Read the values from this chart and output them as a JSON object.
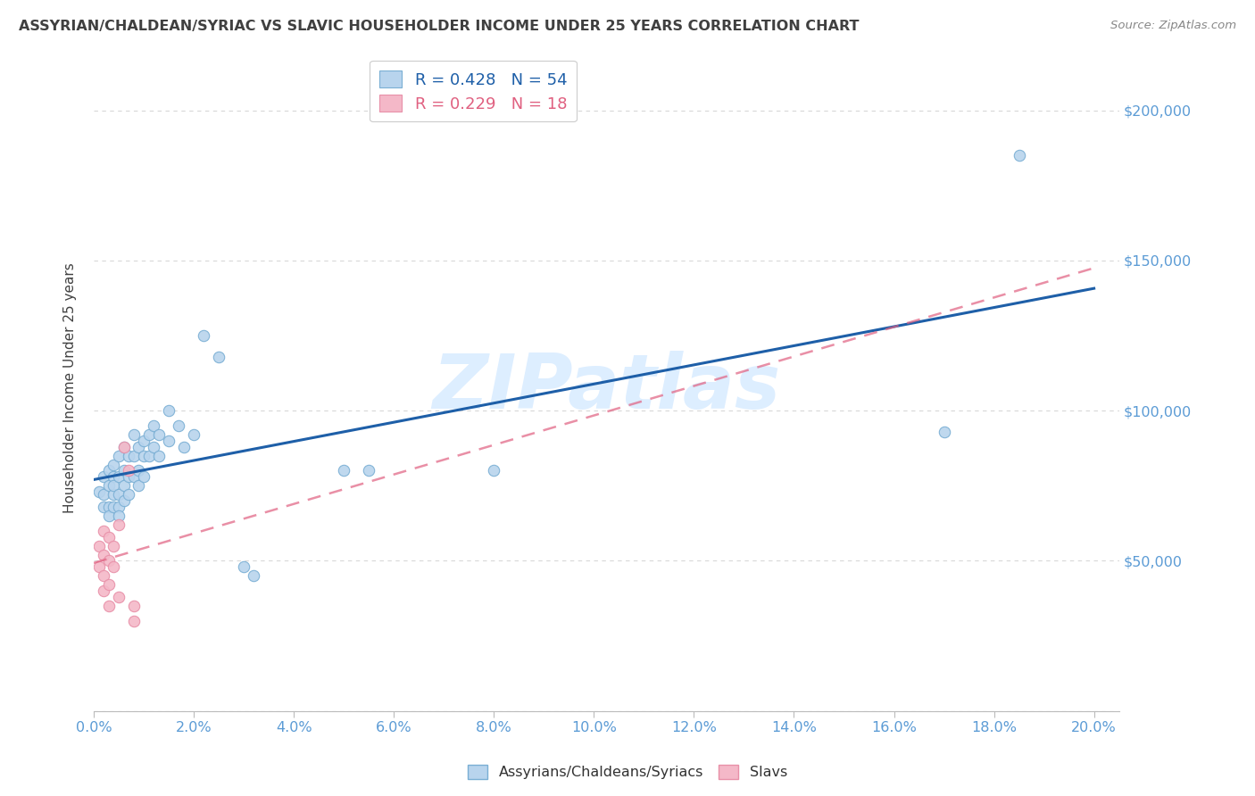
{
  "title": "ASSYRIAN/CHALDEAN/SYRIAC VS SLAVIC HOUSEHOLDER INCOME UNDER 25 YEARS CORRELATION CHART",
  "source": "Source: ZipAtlas.com",
  "ylabel": "Householder Income Under 25 years",
  "legend_label1": "Assyrians/Chaldeans/Syriacs",
  "legend_label2": "Slavs",
  "R1": 0.428,
  "N1": 54,
  "R2": 0.229,
  "N2": 18,
  "color_blue": "#a8c8e8",
  "color_blue_face": "#b8d4ed",
  "color_pink": "#f4b8c8",
  "color_pink_face": "#f4b8c8",
  "color_blue_edge": "#7aafd4",
  "color_pink_edge": "#e890a8",
  "color_line_blue": "#1e5fa8",
  "color_line_pink": "#e06080",
  "watermark": "ZIPatlas",
  "blue_points": [
    [
      0.001,
      73000
    ],
    [
      0.002,
      78000
    ],
    [
      0.002,
      68000
    ],
    [
      0.002,
      72000
    ],
    [
      0.003,
      80000
    ],
    [
      0.003,
      75000
    ],
    [
      0.003,
      68000
    ],
    [
      0.003,
      65000
    ],
    [
      0.004,
      82000
    ],
    [
      0.004,
      72000
    ],
    [
      0.004,
      78000
    ],
    [
      0.004,
      68000
    ],
    [
      0.004,
      75000
    ],
    [
      0.005,
      85000
    ],
    [
      0.005,
      78000
    ],
    [
      0.005,
      72000
    ],
    [
      0.005,
      68000
    ],
    [
      0.005,
      65000
    ],
    [
      0.006,
      88000
    ],
    [
      0.006,
      80000
    ],
    [
      0.006,
      75000
    ],
    [
      0.006,
      70000
    ],
    [
      0.007,
      85000
    ],
    [
      0.007,
      78000
    ],
    [
      0.007,
      72000
    ],
    [
      0.008,
      92000
    ],
    [
      0.008,
      85000
    ],
    [
      0.008,
      78000
    ],
    [
      0.009,
      88000
    ],
    [
      0.009,
      80000
    ],
    [
      0.009,
      75000
    ],
    [
      0.01,
      90000
    ],
    [
      0.01,
      85000
    ],
    [
      0.01,
      78000
    ],
    [
      0.011,
      92000
    ],
    [
      0.011,
      85000
    ],
    [
      0.012,
      95000
    ],
    [
      0.012,
      88000
    ],
    [
      0.013,
      92000
    ],
    [
      0.013,
      85000
    ],
    [
      0.015,
      100000
    ],
    [
      0.015,
      90000
    ],
    [
      0.017,
      95000
    ],
    [
      0.018,
      88000
    ],
    [
      0.02,
      92000
    ],
    [
      0.022,
      125000
    ],
    [
      0.025,
      118000
    ],
    [
      0.03,
      48000
    ],
    [
      0.032,
      45000
    ],
    [
      0.05,
      80000
    ],
    [
      0.055,
      80000
    ],
    [
      0.08,
      80000
    ],
    [
      0.17,
      93000
    ],
    [
      0.185,
      185000
    ]
  ],
  "pink_points": [
    [
      0.001,
      55000
    ],
    [
      0.001,
      48000
    ],
    [
      0.002,
      60000
    ],
    [
      0.002,
      52000
    ],
    [
      0.002,
      45000
    ],
    [
      0.002,
      40000
    ],
    [
      0.003,
      58000
    ],
    [
      0.003,
      50000
    ],
    [
      0.003,
      42000
    ],
    [
      0.003,
      35000
    ],
    [
      0.004,
      55000
    ],
    [
      0.004,
      48000
    ],
    [
      0.005,
      62000
    ],
    [
      0.005,
      38000
    ],
    [
      0.006,
      88000
    ],
    [
      0.007,
      80000
    ],
    [
      0.008,
      35000
    ],
    [
      0.008,
      30000
    ]
  ],
  "xlim": [
    0.0,
    0.205
  ],
  "ylim": [
    0,
    215000
  ],
  "yticks": [
    0,
    50000,
    100000,
    150000,
    200000
  ],
  "ytick_labels": [
    "",
    "$50,000",
    "$100,000",
    "$150,000",
    "$200,000"
  ],
  "xtick_positions": [
    0.0,
    0.02,
    0.04,
    0.06,
    0.08,
    0.1,
    0.12,
    0.14,
    0.16,
    0.18,
    0.2
  ],
  "xtick_labels": [
    "0.0%",
    "2.0%",
    "4.0%",
    "6.0%",
    "8.0%",
    "10.0%",
    "12.0%",
    "14.0%",
    "16.0%",
    "18.0%",
    "20.0%"
  ],
  "grid_color": "#d8d8d8",
  "bg_color": "#ffffff",
  "title_color": "#404040",
  "axis_color": "#5b9bd5",
  "watermark_color": "#ddeeff"
}
